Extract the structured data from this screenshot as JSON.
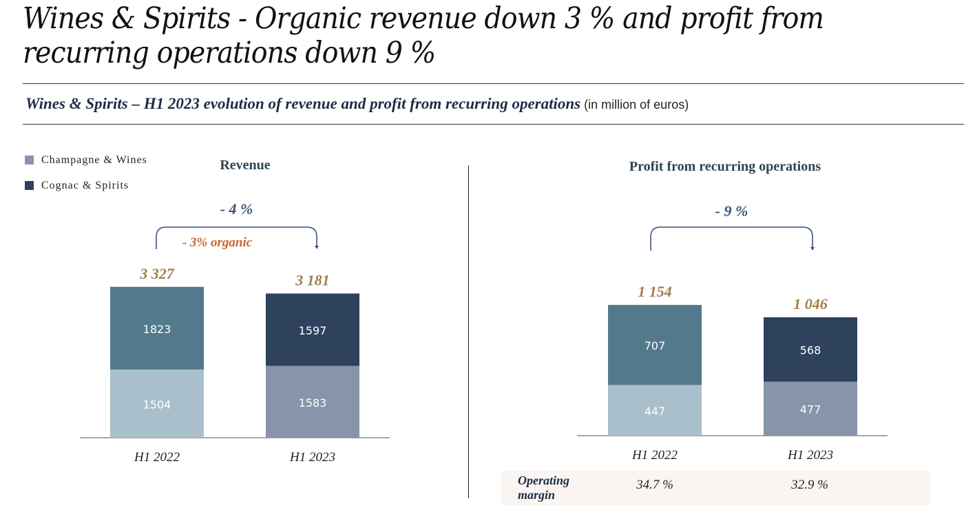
{
  "page": {
    "title": "Wines & Spirits - Organic revenue down 3 % and profit from recurring operations down 9 %",
    "subtitle_strong": "Wines & Spirits – H1 2023 evolution of revenue and profit from recurring operations",
    "subtitle_unit": " (in million of euros)"
  },
  "legend": [
    {
      "label": "Champagne & Wines",
      "color": "#8794a9"
    },
    {
      "label": "Cognac & Spirits",
      "color": "#2e425d"
    }
  ],
  "operating_margin": {
    "label_line1": "Operating",
    "label_line2": "margin",
    "values": [
      "34.7 %",
      "32.9 %"
    ]
  },
  "chart_data": [
    {
      "type": "bar",
      "stacked": true,
      "title": "Revenue",
      "categories": [
        "H1 2022",
        "H1 2023"
      ],
      "series": [
        {
          "name": "Champagne & Wines",
          "values": [
            1504,
            1583
          ],
          "colors": [
            "#a9bfcb",
            "#8794a9"
          ]
        },
        {
          "name": "Cognac & Spirits",
          "values": [
            1823,
            1597
          ],
          "colors": [
            "#537a8c",
            "#2e425d"
          ]
        }
      ],
      "totals": [
        "3 327",
        "3 181"
      ],
      "change_label": "- 4 %",
      "organic_label": "- 3% organic",
      "xlabel": "",
      "ylabel": "",
      "grid": false,
      "legend": "top-left"
    },
    {
      "type": "bar",
      "stacked": true,
      "title": "Profit from recurring operations",
      "categories": [
        "H1 2022",
        "H1 2023"
      ],
      "series": [
        {
          "name": "Champagne & Wines",
          "values": [
            447,
            477
          ],
          "colors": [
            "#a9bfcb",
            "#8794a9"
          ]
        },
        {
          "name": "Cognac & Spirits",
          "values": [
            707,
            568
          ],
          "colors": [
            "#537a8c",
            "#2e425d"
          ]
        }
      ],
      "totals": [
        "1 154",
        "1 046"
      ],
      "change_label": "- 9 %",
      "xlabel": "",
      "ylabel": "",
      "grid": false
    }
  ]
}
